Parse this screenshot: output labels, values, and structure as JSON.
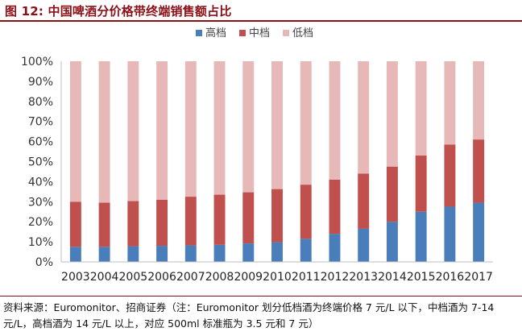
{
  "figure": {
    "title": "图 12:  中国啤酒分价格带终端销售额占比",
    "note": "资料来源：Euromonitor、招商证券（注：Euromonitor 划分低档酒为终端价格 7 元/L 以下，中档酒为 7-14 元/L，高档酒为 14 元/L 以上，对应 500ml 标准瓶为 3.5 元和 7 元）"
  },
  "colors": {
    "accent": "#8b0f16",
    "high": "#4a7ebb",
    "mid": "#c0504d",
    "low": "#e6b9b8",
    "axis": "#bfbfbf"
  },
  "chart_data": {
    "type": "bar",
    "stacked": true,
    "percent": true,
    "title": "",
    "xlabel": "",
    "ylabel": "",
    "ylim": [
      0,
      100
    ],
    "yticks": [
      "0%",
      "10%",
      "20%",
      "30%",
      "40%",
      "50%",
      "60%",
      "70%",
      "80%",
      "90%",
      "100%"
    ],
    "legend_position": "top-center",
    "categories": [
      "2003",
      "2004",
      "2005",
      "2006",
      "2007",
      "2008",
      "2009",
      "2010",
      "2011",
      "2012",
      "2013",
      "2014",
      "2015",
      "2016",
      "2017"
    ],
    "series": [
      {
        "name": "高档",
        "color_key": "high",
        "values": [
          7.5,
          7.5,
          7.8,
          8.0,
          8.2,
          8.5,
          9.2,
          9.8,
          11.5,
          14.0,
          16.5,
          20.0,
          25.0,
          27.5,
          29.5
        ]
      },
      {
        "name": "中档",
        "color_key": "mid",
        "values": [
          22.5,
          22.0,
          22.5,
          23.0,
          24.3,
          25.0,
          25.5,
          26.5,
          27.0,
          27.0,
          27.5,
          27.5,
          28.0,
          31.0,
          31.5
        ]
      },
      {
        "name": "低档",
        "color_key": "low",
        "values": [
          70.0,
          70.5,
          69.7,
          69.0,
          67.5,
          66.5,
          65.3,
          63.7,
          61.5,
          59.0,
          56.0,
          52.5,
          47.0,
          41.5,
          39.0
        ]
      }
    ]
  }
}
